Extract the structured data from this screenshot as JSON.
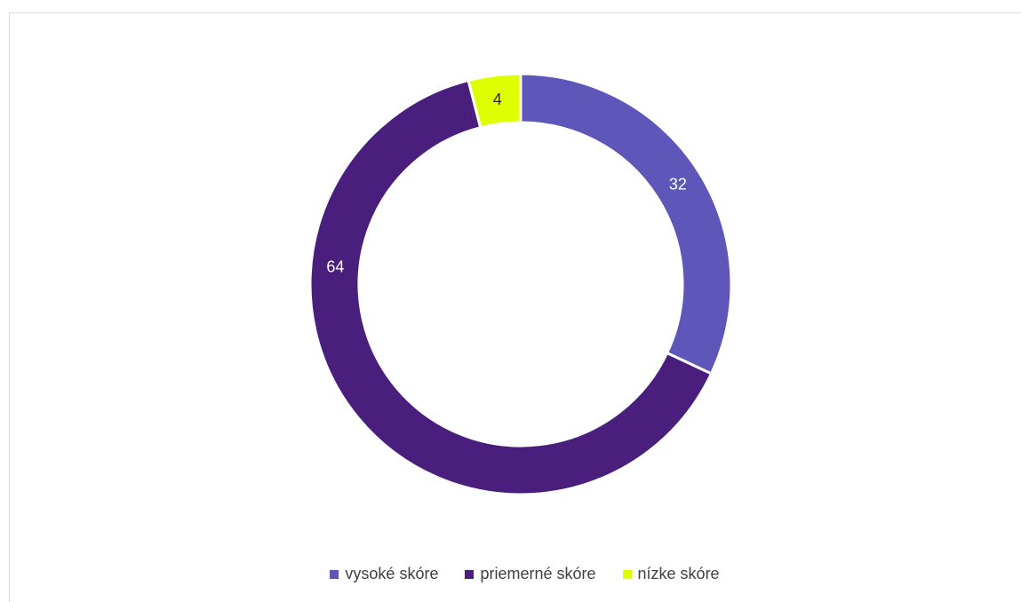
{
  "chart_data": {
    "type": "pie",
    "variant": "donut",
    "categories": [
      "vysoké skóre",
      "priemerné skóre",
      "nízke skóre"
    ],
    "values": [
      32,
      64,
      4
    ],
    "colors": [
      "#5E56B9",
      "#4A1E7C",
      "#DDFF00"
    ],
    "label_colors": [
      "#ffffff",
      "#ffffff",
      "#262626"
    ],
    "data_labels": [
      "32",
      "64",
      "4"
    ],
    "legend_position": "bottom"
  }
}
